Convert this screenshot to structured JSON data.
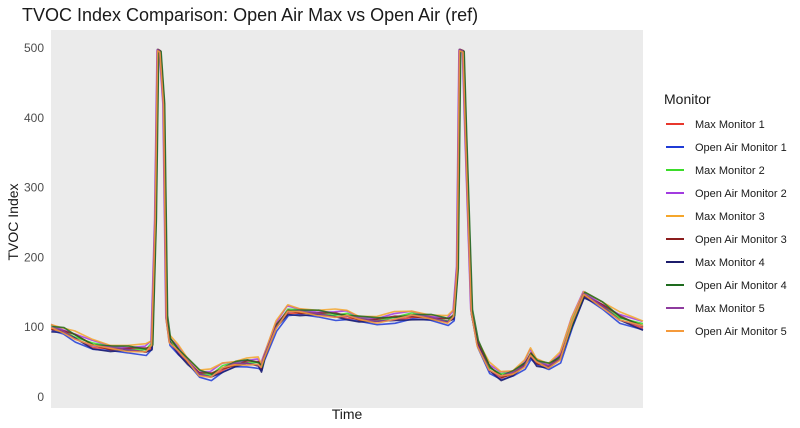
{
  "chart_data": {
    "type": "line",
    "title": "TVOC Index Comparison: Open Air Max vs Open Air (ref)",
    "xlabel": "Time",
    "ylabel": "TVOC Index",
    "xlim": [
      0,
      100
    ],
    "ylim": [
      0,
      500
    ],
    "yticks": [
      0,
      100,
      200,
      300,
      400,
      500
    ],
    "grid": false,
    "legend": {
      "title": "Monitor",
      "position": "right"
    },
    "series": [
      {
        "name": "Max Monitor 1",
        "color": "#e8372c",
        "y_offset": 0,
        "x_shift": 0.0
      },
      {
        "name": "Open Air Monitor 1",
        "color": "#1f3bd6",
        "y_offset": -4,
        "x_shift": 0.1
      },
      {
        "name": "Max Monitor 2",
        "color": "#3bdc2a",
        "y_offset": 3,
        "x_shift": 0.0
      },
      {
        "name": "Open Air Monitor 2",
        "color": "#a23be0",
        "y_offset": 6,
        "x_shift": -0.1
      },
      {
        "name": "Max Monitor 3",
        "color": "#f5a62b",
        "y_offset": 8,
        "x_shift": 0.0
      },
      {
        "name": "Open Air Monitor 3",
        "color": "#8b1d1d",
        "y_offset": 2,
        "x_shift": 0.1
      },
      {
        "name": "Max Monitor 4",
        "color": "#1c1c6b",
        "y_offset": -2,
        "x_shift": 0.05
      },
      {
        "name": "Open Air Monitor 4",
        "color": "#1e6b1e",
        "y_offset": 4,
        "x_shift": 0.2
      },
      {
        "name": "Max Monitor 5",
        "color": "#8e3b9e",
        "y_offset": 1,
        "x_shift": -0.05
      },
      {
        "name": "Open Air Monitor 5",
        "color": "#f59a3b",
        "y_offset": 0,
        "x_shift": 0.0
      }
    ],
    "base_profile": {
      "x": [
        0,
        2,
        4,
        7,
        10,
        13,
        16,
        17,
        17.6,
        18,
        18.4,
        19,
        19.5,
        20,
        21.5,
        23,
        25,
        27,
        29,
        31,
        33,
        35,
        35.5,
        36,
        38,
        40,
        42,
        45,
        48,
        50,
        52,
        55,
        58,
        61,
        64,
        67,
        68,
        68.6,
        69,
        69.6,
        70,
        71,
        72,
        74,
        76,
        78,
        80,
        81,
        82,
        84,
        86,
        88,
        90,
        93,
        96,
        100
      ],
      "y": [
        97,
        93,
        85,
        73,
        68,
        67,
        66,
        72,
        250,
        497,
        495,
        420,
        110,
        80,
        65,
        50,
        32,
        30,
        40,
        45,
        48,
        47,
        40,
        55,
        100,
        122,
        120,
        118,
        116,
        115,
        110,
        108,
        112,
        115,
        112,
        108,
        115,
        180,
        497,
        495,
        380,
        120,
        75,
        40,
        28,
        32,
        45,
        60,
        48,
        42,
        55,
        105,
        145,
        130,
        112,
        100
      ]
    }
  }
}
